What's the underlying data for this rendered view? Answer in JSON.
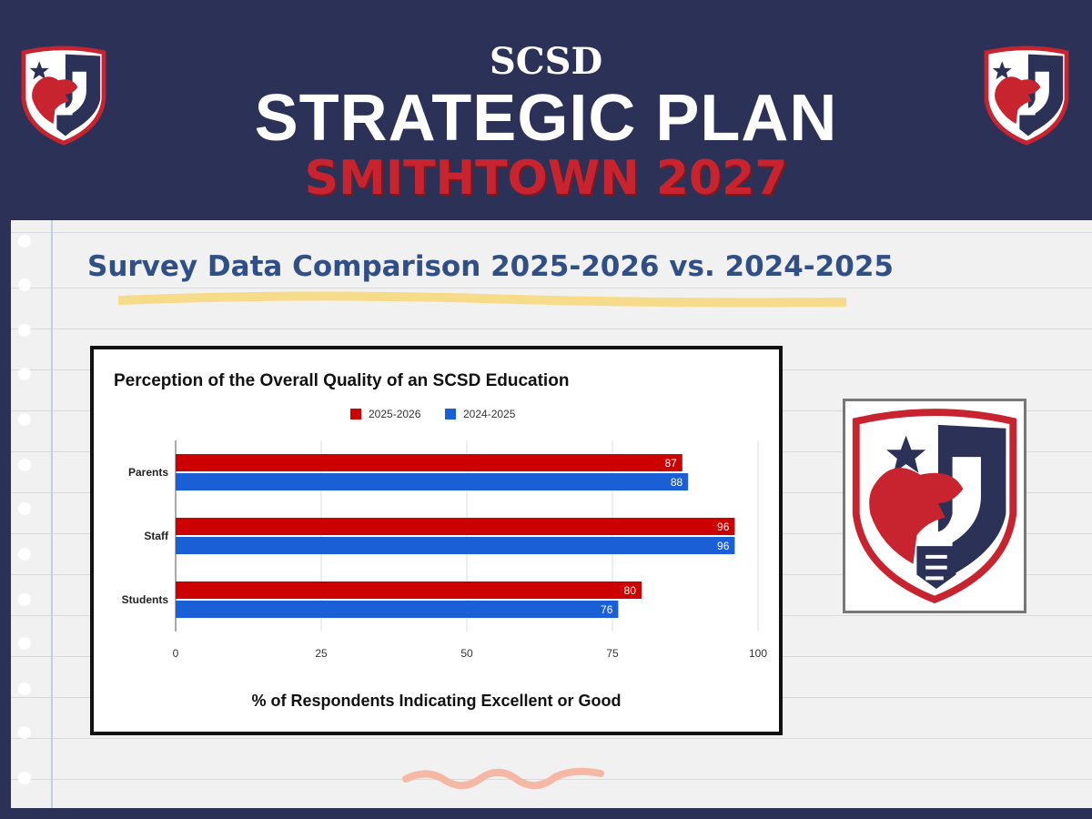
{
  "header": {
    "line1": "SCSD",
    "line2": "STRATEGIC PLAN",
    "line3": "SMITHTOWN 2027"
  },
  "section_title": "Survey Data Comparison 2025-2026 vs. 2024-2025",
  "icons": {
    "logo": "scsd-bull-crest-icon"
  },
  "colors": {
    "navy": "#2b3157",
    "red": "#c8242f",
    "bar_2025": "#cc0000",
    "bar_2024": "#1a5fd6",
    "title_blue": "#2f4f86"
  },
  "chart_data": {
    "type": "bar",
    "orientation": "horizontal",
    "title": "Perception of the Overall Quality of an SCSD Education",
    "xlabel": "% of Respondents Indicating Excellent or Good",
    "ylabel": "",
    "categories": [
      "Parents",
      "Staff",
      "Students"
    ],
    "series": [
      {
        "name": "2025-2026",
        "color": "#cc0000",
        "values": [
          87,
          96,
          80
        ]
      },
      {
        "name": "2024-2025",
        "color": "#1a5fd6",
        "values": [
          88,
          96,
          76
        ]
      }
    ],
    "xlim": [
      0,
      100
    ],
    "xticks": [
      0,
      25,
      50,
      75,
      100
    ],
    "legend_position": "top",
    "grid": true,
    "data_labels": true
  }
}
